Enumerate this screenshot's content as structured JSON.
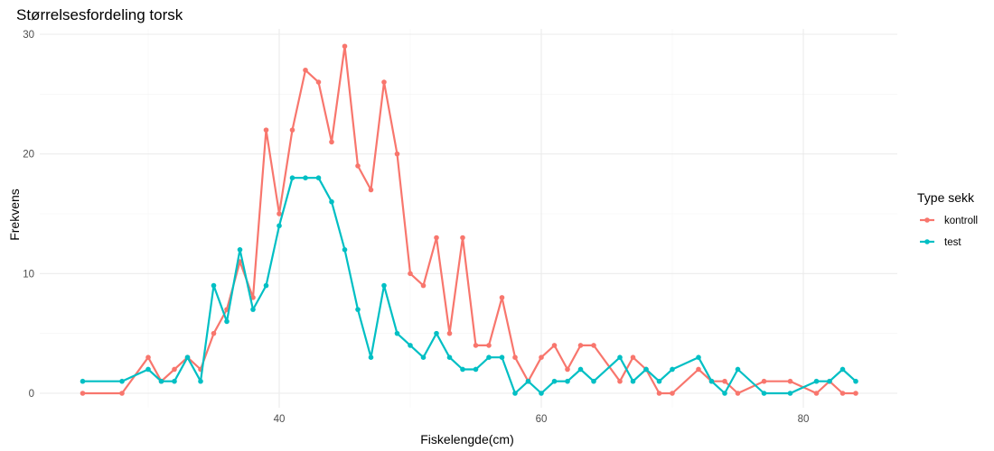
{
  "chart_data": {
    "type": "line",
    "title": "Størrelsesfordeling torsk",
    "xlabel": "Fiskelengde(cm)",
    "ylabel": "Frekvens",
    "xlim": [
      23,
      86
    ],
    "ylim": [
      -1.5,
      30.5
    ],
    "x_ticks": [
      40,
      60,
      80
    ],
    "y_ticks": [
      0,
      10,
      20,
      30
    ],
    "grid": true,
    "legend": {
      "title": "Type sekk",
      "position": "right"
    },
    "series": [
      {
        "name": "kontroll",
        "color": "#F8766D",
        "x": [
          25,
          28,
          30,
          31,
          32,
          33,
          34,
          35,
          36,
          37,
          38,
          39,
          40,
          41,
          42,
          43,
          44,
          45,
          46,
          47,
          48,
          49,
          50,
          51,
          52,
          53,
          54,
          55,
          56,
          57,
          58,
          59,
          60,
          61,
          62,
          63,
          64,
          66,
          67,
          68,
          69,
          70,
          72,
          73,
          74,
          75,
          77,
          79,
          81,
          82,
          83,
          84
        ],
        "values": [
          0,
          0,
          3,
          1,
          2,
          3,
          2,
          5,
          7,
          11,
          8,
          22,
          15,
          22,
          27,
          26,
          21,
          29,
          19,
          17,
          26,
          20,
          10,
          9,
          13,
          5,
          13,
          4,
          4,
          8,
          3,
          1,
          3,
          4,
          2,
          4,
          4,
          1,
          3,
          2,
          0,
          0,
          2,
          1,
          1,
          0,
          1,
          1,
          0,
          1,
          0,
          0
        ]
      },
      {
        "name": "test",
        "color": "#00BFC4",
        "x": [
          25,
          28,
          30,
          31,
          32,
          33,
          34,
          35,
          36,
          37,
          38,
          39,
          40,
          41,
          42,
          43,
          44,
          45,
          46,
          47,
          48,
          49,
          50,
          51,
          52,
          53,
          54,
          55,
          56,
          57,
          58,
          59,
          60,
          61,
          62,
          63,
          64,
          66,
          67,
          68,
          69,
          70,
          72,
          73,
          74,
          75,
          77,
          79,
          81,
          82,
          83,
          84
        ],
        "values": [
          1,
          1,
          2,
          1,
          1,
          3,
          1,
          9,
          6,
          12,
          7,
          9,
          14,
          18,
          18,
          18,
          16,
          12,
          7,
          3,
          9,
          5,
          4,
          3,
          5,
          3,
          2,
          2,
          3,
          3,
          0,
          1,
          0,
          1,
          1,
          2,
          1,
          3,
          1,
          2,
          1,
          2,
          3,
          1,
          0,
          2,
          0,
          0,
          1,
          1,
          2,
          1
        ]
      }
    ]
  }
}
